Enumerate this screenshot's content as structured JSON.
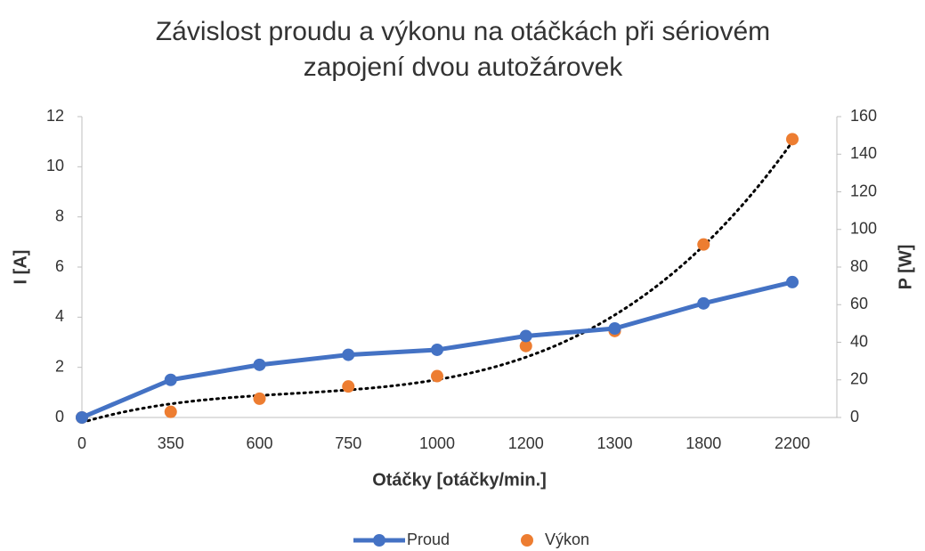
{
  "chart_data": {
    "type": "line",
    "title": "Závislost proudu a výkonu na otáčkách při sériovém zapojení dvou autožárovek",
    "x_label": "Otáčky [otáčky/min.]",
    "y_label": "I [A]",
    "y2_label": "P [W]",
    "categories": [
      "0",
      "350",
      "600",
      "750",
      "1000",
      "1200",
      "1300",
      "1800",
      "2200"
    ],
    "series": [
      {
        "name": "Proud",
        "color": "#4472c4",
        "type": "line",
        "values": [
          0,
          1.5,
          2.1,
          2.5,
          2.7,
          3.25,
          3.55,
          4.55,
          5.4
        ]
      },
      {
        "name": "Výkon",
        "color": "#ed7d31",
        "type": "scatter",
        "axis": "y2",
        "trendline": "polynomial",
        "values": [
          0,
          3,
          10,
          16.5,
          22,
          38,
          46,
          92,
          148
        ]
      }
    ],
    "ylim": [
      0,
      12
    ],
    "yticks": [
      0,
      2,
      4,
      6,
      8,
      10,
      12
    ],
    "y2lim": [
      0,
      160
    ],
    "y2ticks": [
      0,
      20,
      40,
      60,
      80,
      100,
      120,
      140,
      160
    ],
    "legend": "bottom"
  }
}
